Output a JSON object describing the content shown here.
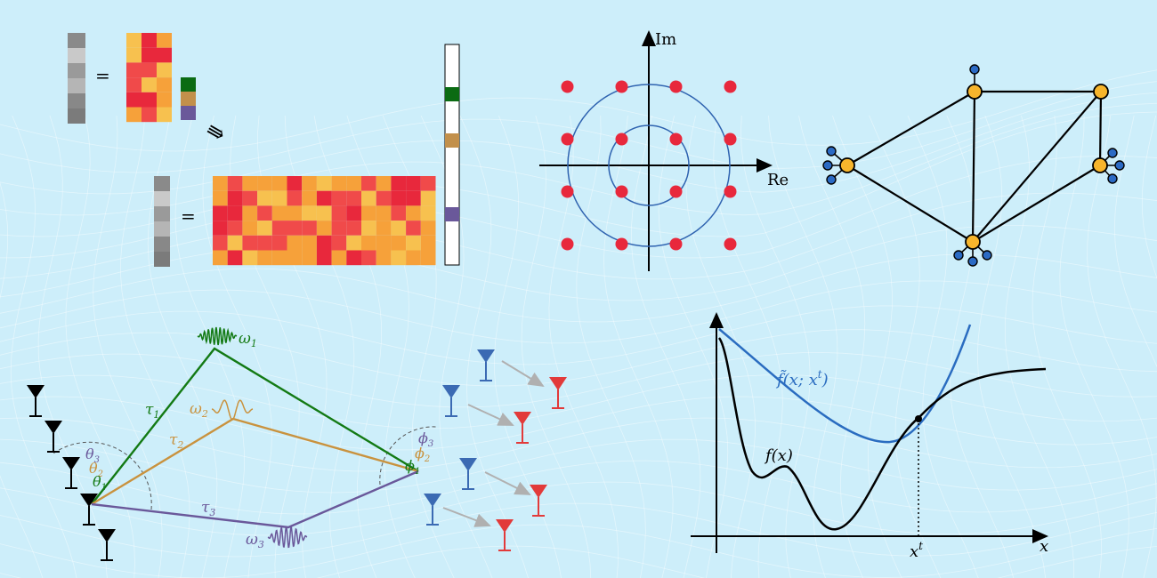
{
  "colors": {
    "background": "#cdeefa",
    "mesh": "#ffffff",
    "heat": [
      "#e8283c",
      "#f04a4a",
      "#f6a13a",
      "#f7c14f"
    ],
    "gray": [
      "#8a8a8a",
      "#c9c9c9",
      "#9a9a9a",
      "#b5b5b5",
      "#888888",
      "#7b7b7b"
    ],
    "small_vec": [
      "#0b6b13",
      "#c2904b",
      "#6a589a"
    ],
    "constellation_dot": "#e8283c",
    "circle": "#2f63b0",
    "node_fill": "#f7b52c",
    "leaf_fill": "#2b6ac4",
    "green": "#137a14",
    "orange": "#c9923e",
    "purple": "#6a589a",
    "blue_antenna": "#3b6ab3",
    "red_antenna": "#e23a3a",
    "curve_blue": "#2a6cc0"
  },
  "matrix_panel": {
    "equals_small": "=",
    "equals_large": "=",
    "arrow": "⇛"
  },
  "constellation": {
    "axis_im": "Im",
    "axis_re": "Re",
    "points": [
      [
        -3,
        3
      ],
      [
        -1,
        3
      ],
      [
        1,
        3
      ],
      [
        3,
        3
      ],
      [
        -3,
        1
      ],
      [
        -1,
        1
      ],
      [
        1,
        1
      ],
      [
        3,
        1
      ],
      [
        -3,
        -1
      ],
      [
        -1,
        -1
      ],
      [
        1,
        -1
      ],
      [
        3,
        -1
      ],
      [
        -3,
        -3
      ],
      [
        -1,
        -3
      ],
      [
        1,
        -3
      ],
      [
        3,
        -3
      ]
    ]
  },
  "channel": {
    "omega1": "ω",
    "omega1_sub": "1",
    "omega2": "ω",
    "omega2_sub": "2",
    "omega3": "ω",
    "omega3_sub": "3",
    "tau1": "τ",
    "tau1_sub": "1",
    "tau2": "τ",
    "tau2_sub": "2",
    "tau3": "τ",
    "tau3_sub": "3",
    "theta1": "θ",
    "theta1_sub": "1",
    "theta2": "θ",
    "theta2_sub": "2",
    "theta3": "θ",
    "theta3_sub": "3",
    "phi1": "ϕ",
    "phi1_sub": "1",
    "phi2": "ϕ",
    "phi2_sub": "2",
    "phi3": "ϕ",
    "phi3_sub": "3"
  },
  "optimization": {
    "surrogate_label": "f̃(x; x",
    "surrogate_sup": "t",
    "surrogate_close": ")",
    "func_label": "f(x)",
    "xt_label": "x",
    "xt_sup": "t",
    "x_axis_label": "x"
  }
}
